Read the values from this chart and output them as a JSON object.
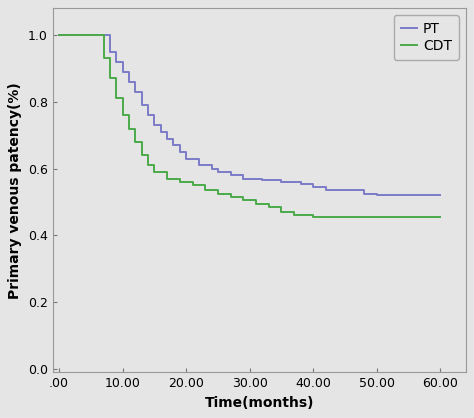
{
  "pt_x": [
    0,
    7,
    8,
    9,
    10,
    11,
    12,
    13,
    14,
    15,
    16,
    17,
    18,
    19,
    20,
    22,
    24,
    25,
    27,
    29,
    30,
    32,
    35,
    38,
    40,
    42,
    48,
    50,
    60
  ],
  "pt_y": [
    1.0,
    1.0,
    0.95,
    0.92,
    0.89,
    0.86,
    0.83,
    0.79,
    0.76,
    0.73,
    0.71,
    0.69,
    0.67,
    0.65,
    0.63,
    0.61,
    0.6,
    0.59,
    0.58,
    0.57,
    0.57,
    0.565,
    0.56,
    0.555,
    0.545,
    0.535,
    0.525,
    0.52,
    0.52
  ],
  "cdt_x": [
    0,
    6,
    7,
    8,
    9,
    10,
    11,
    12,
    13,
    14,
    15,
    17,
    19,
    21,
    23,
    25,
    27,
    29,
    31,
    33,
    35,
    37,
    40,
    42,
    60
  ],
  "cdt_y": [
    1.0,
    1.0,
    0.93,
    0.87,
    0.81,
    0.76,
    0.72,
    0.68,
    0.64,
    0.61,
    0.59,
    0.57,
    0.56,
    0.55,
    0.535,
    0.525,
    0.515,
    0.505,
    0.495,
    0.485,
    0.47,
    0.46,
    0.455,
    0.455,
    0.455
  ],
  "pt_color": "#7b7bc8",
  "cdt_color": "#4aaa4a",
  "xlim": [
    -1,
    64
  ],
  "ylim": [
    -0.01,
    1.08
  ],
  "xticks": [
    0,
    10,
    20,
    30,
    40,
    50,
    60
  ],
  "xtick_labels": [
    ".00",
    "10.00",
    "20.00",
    "30.00",
    "40.00",
    "50.00",
    "60.00"
  ],
  "yticks": [
    0.0,
    0.2,
    0.4,
    0.6,
    0.8,
    1.0
  ],
  "ytick_labels": [
    "0.0",
    "0.2",
    "0.4",
    "0.6",
    "0.8",
    "1.0"
  ],
  "xlabel": "Time(months)",
  "ylabel": "Primary venous patency(%)",
  "bg_color": "#e5e5e5",
  "legend_labels": [
    "PT",
    "CDT"
  ],
  "legend_colors": [
    "#7b7bc8",
    "#4aaa4a"
  ],
  "line_width": 1.4,
  "font_size": 10,
  "tick_font_size": 9,
  "legend_fontsize": 10
}
